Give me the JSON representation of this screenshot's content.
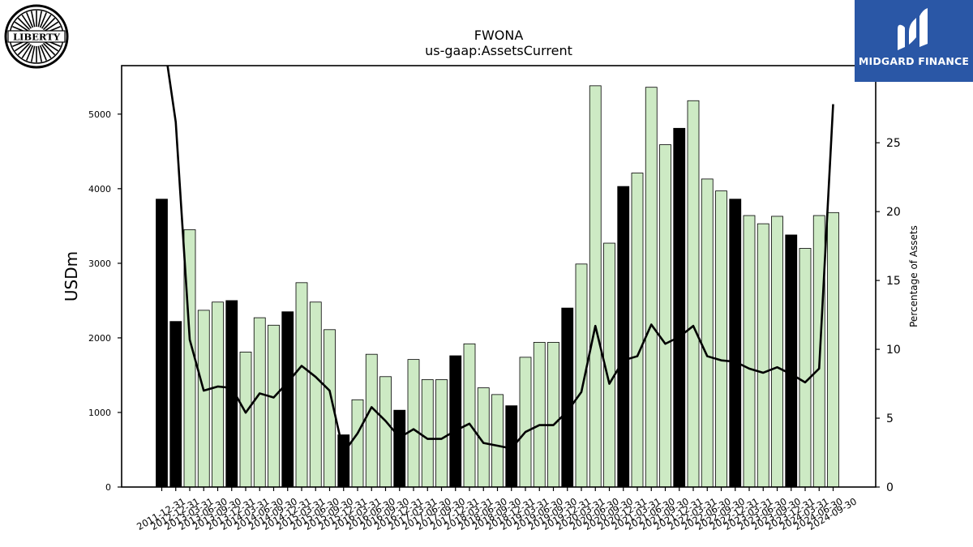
{
  "logos": {
    "left_text": "LIBERTY",
    "right_text": "MIDGARD FINANCE",
    "right_color": "#2a57a6"
  },
  "colors": {
    "bar_light": "#cdeac4",
    "bar_dark": "#000000",
    "line": "#000000"
  },
  "chart_data": {
    "type": "bar",
    "title": "FWONA",
    "subtitle": "us-gaap:AssetsCurrent",
    "ylabel": "USDm",
    "y2label": "Percentage of Assets",
    "ylim": [
      0,
      5650
    ],
    "y2lim": [
      0,
      30.6
    ],
    "yticks": [
      0,
      1000,
      2000,
      3000,
      4000,
      5000
    ],
    "y2ticks": [
      0,
      5,
      10,
      15,
      20,
      25,
      30
    ],
    "grid": false,
    "categories": [
      "2011-12-31",
      "2012-12-31",
      "2013-03-31",
      "2013-06-30",
      "2013-09-30",
      "2013-12-31",
      "2014-03-31",
      "2014-06-30",
      "2014-09-30",
      "2014-12-31",
      "2015-03-31",
      "2015-06-30",
      "2015-09-30",
      "2015-12-31",
      "2016-03-31",
      "2016-06-30",
      "2016-09-30",
      "2016-12-31",
      "2017-03-31",
      "2017-06-30",
      "2017-09-30",
      "2017-12-31",
      "2018-03-31",
      "2018-06-30",
      "2018-09-30",
      "2018-12-31",
      "2019-03-31",
      "2019-06-30",
      "2019-09-30",
      "2019-12-31",
      "2020-03-31",
      "2020-06-30",
      "2020-09-30",
      "2020-12-31",
      "2021-03-31",
      "2021-06-30",
      "2021-09-30",
      "2021-12-31",
      "2022-03-31",
      "2022-06-30",
      "2022-09-30",
      "2022-12-31",
      "2023-03-31",
      "2023-06-30",
      "2023-09-30",
      "2023-12-31",
      "2024-03-31",
      "2024-06-30",
      "2024-09-30"
    ],
    "series": [
      {
        "kind": "bar",
        "axis": "left",
        "values": [
          3860,
          2220,
          3450,
          2370,
          2480,
          2500,
          1810,
          2270,
          2170,
          2350,
          2740,
          2480,
          2110,
          700,
          1170,
          1780,
          1480,
          1030,
          1710,
          1440,
          1440,
          1760,
          1920,
          1330,
          1240,
          1090,
          1740,
          1940,
          1940,
          2400,
          2990,
          5380,
          3270,
          4030,
          4210,
          5360,
          4590,
          4810,
          5180,
          4130,
          3970,
          3860,
          3640,
          3530,
          3630,
          3380,
          3200,
          3640,
          3680
        ],
        "highlight": [
          true,
          true,
          false,
          false,
          false,
          true,
          false,
          false,
          false,
          true,
          false,
          false,
          false,
          true,
          false,
          false,
          false,
          true,
          false,
          false,
          false,
          true,
          false,
          false,
          false,
          true,
          false,
          false,
          false,
          true,
          false,
          false,
          false,
          true,
          false,
          false,
          false,
          true,
          false,
          false,
          false,
          true,
          false,
          false,
          false,
          true,
          false,
          false,
          false
        ]
      },
      {
        "kind": "line",
        "axis": "right",
        "values": [
          33.5,
          26.5,
          10.7,
          7.0,
          7.3,
          7.2,
          5.4,
          6.8,
          6.5,
          7.6,
          8.8,
          8.0,
          7.0,
          2.5,
          3.9,
          5.8,
          4.8,
          3.6,
          4.2,
          3.5,
          3.5,
          4.1,
          4.6,
          3.2,
          3.0,
          2.8,
          4.0,
          4.5,
          4.5,
          5.5,
          6.9,
          11.7,
          7.5,
          9.2,
          9.5,
          11.8,
          10.4,
          10.9,
          11.7,
          9.5,
          9.2,
          9.1,
          8.6,
          8.3,
          8.7,
          8.2,
          7.6,
          8.6,
          27.8
        ]
      }
    ]
  }
}
